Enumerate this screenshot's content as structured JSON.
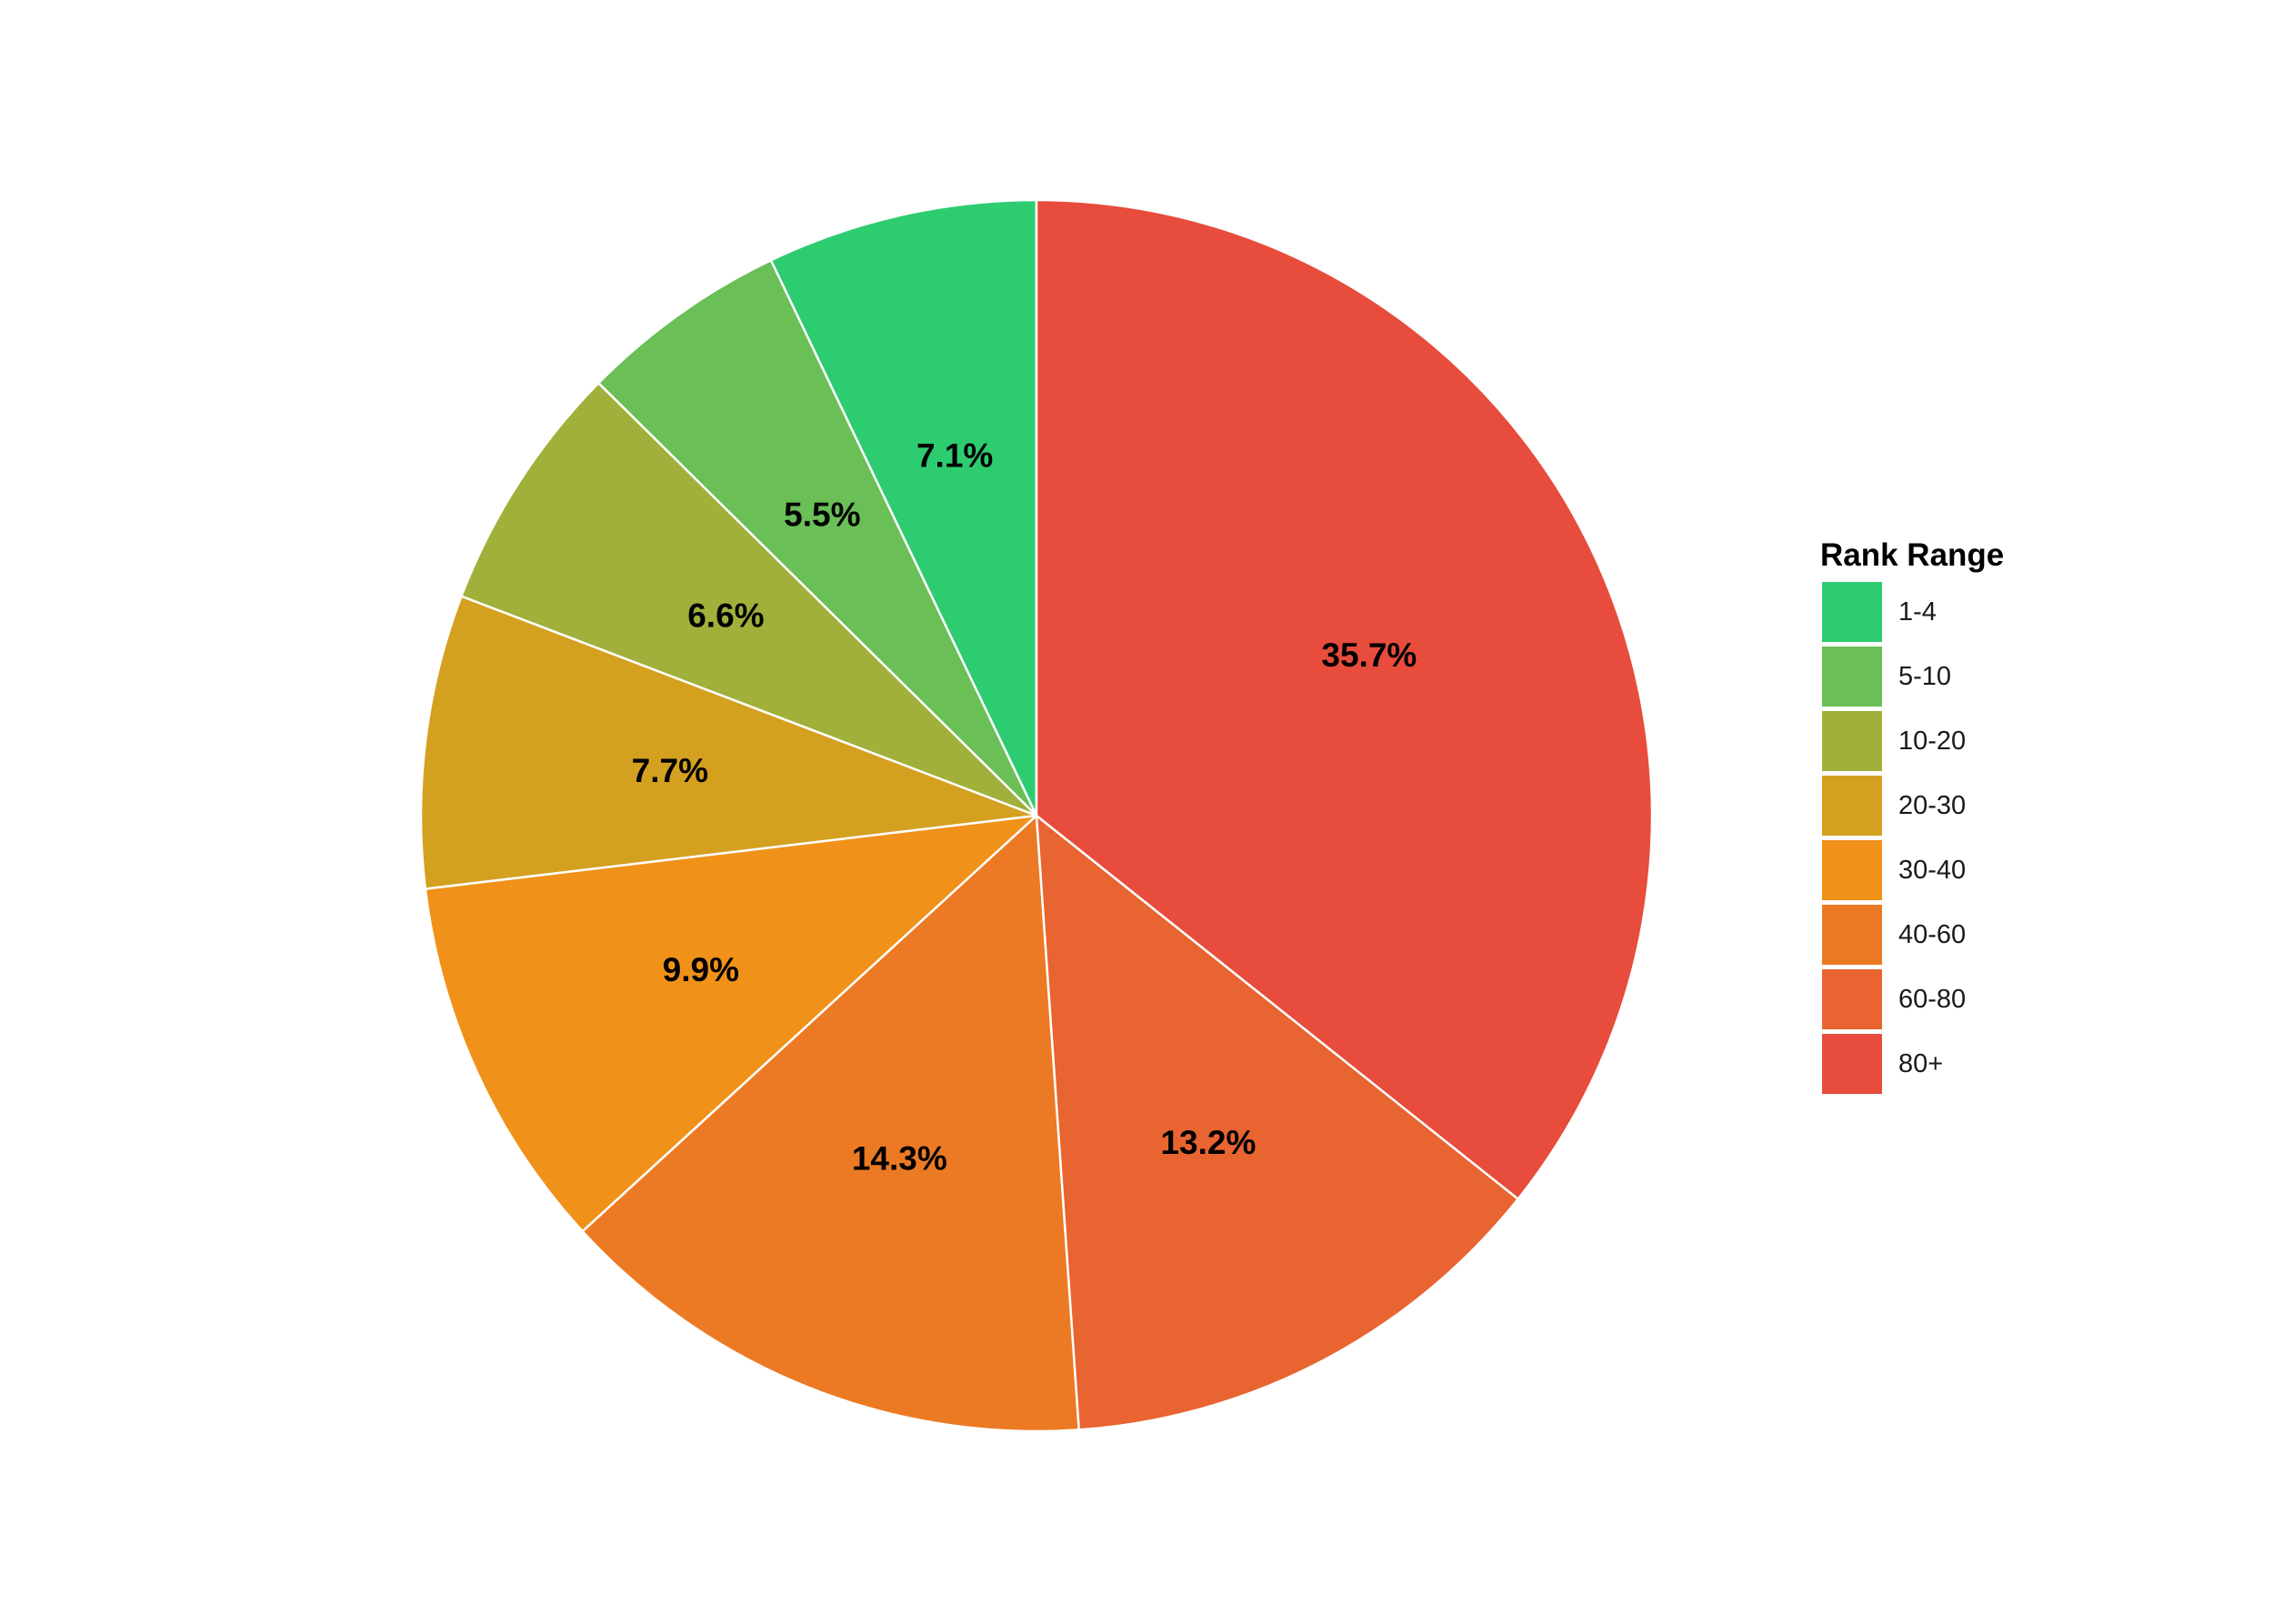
{
  "chart_data": {
    "type": "pie",
    "legend_title": "Rank Range",
    "legend_position": "right",
    "start": "top, clockwise",
    "categories": [
      "1-4",
      "5-10",
      "10-20",
      "20-30",
      "30-40",
      "40-60",
      "60-80",
      "80+"
    ],
    "values": [
      7.1,
      5.5,
      6.6,
      7.7,
      9.9,
      14.3,
      13.2,
      35.7
    ],
    "labels": [
      "7.1%",
      "5.5%",
      "6.6%",
      "7.7%",
      "9.9%",
      "14.3%",
      "13.2%",
      "35.7%"
    ],
    "colors": [
      "#2ECC71",
      "#6ABF57",
      "#A0B03A",
      "#D4A020",
      "#F0911A",
      "#EC7A24",
      "#E86431",
      "#E74C3C"
    ]
  }
}
